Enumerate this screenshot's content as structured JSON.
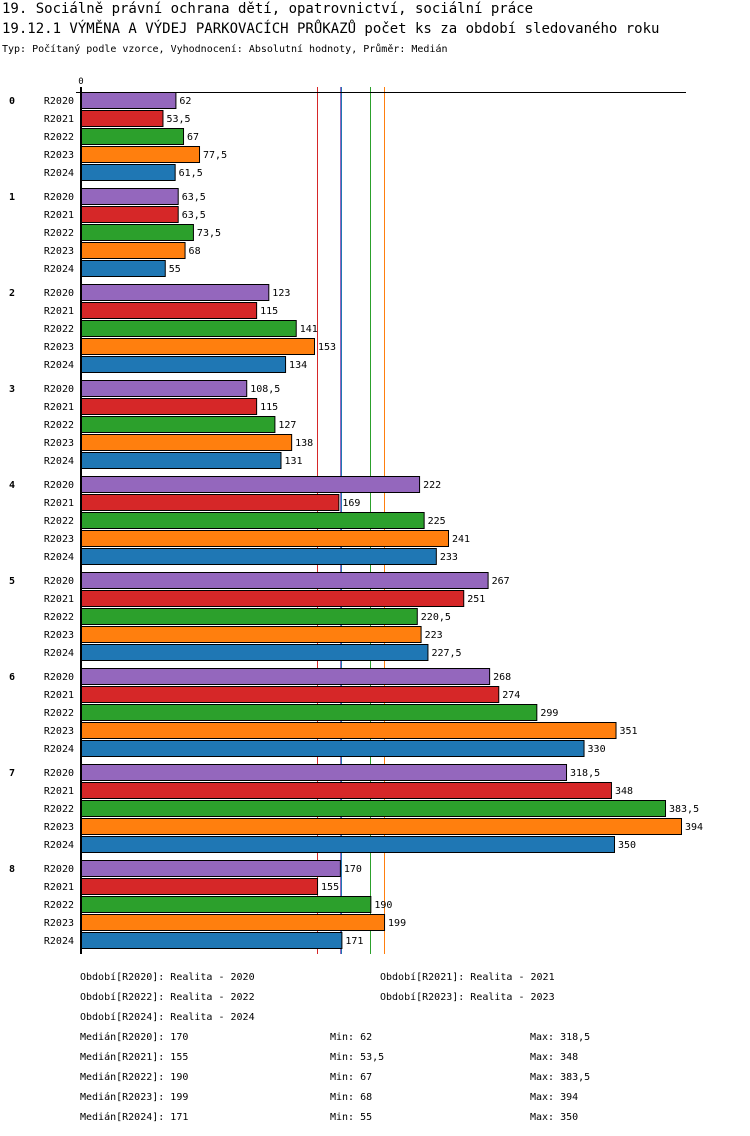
{
  "header": {
    "title": "19. Sociálně právní ochrana dětí, opatrovnictví, sociální práce",
    "subtitle": "19.12.1 VÝMĚNA A VÝDEJ PARKOVACÍCH PRŮKAZŮ počet ks za období sledovaného roku",
    "type_line": "Typ: Počítaný podle vzorce, Vyhodnocení: Absolutní hodnoty, Průměr: Medián"
  },
  "chart_data": {
    "type": "bar",
    "orientation": "horizontal",
    "title": "19.12.1 VÝMĚNA A VÝDEJ PARKOVACÍCH PRŮKAZŮ počet ks za období sledovaného roku",
    "xlabel": "",
    "ylabel": "",
    "x_tick_labels": [
      "0"
    ],
    "xlim": [
      0,
      394
    ],
    "categories": [
      "0",
      "1",
      "2",
      "3",
      "4",
      "5",
      "6",
      "7",
      "8"
    ],
    "series": [
      {
        "name": "R2020",
        "color": "#9467bd",
        "values": [
          62,
          63.5,
          123,
          108.5,
          222,
          267,
          268,
          318.5,
          170
        ],
        "labels": [
          "62",
          "63,5",
          "123",
          "108,5",
          "222",
          "267",
          "268",
          "318,5",
          "170"
        ],
        "median": 170
      },
      {
        "name": "R2021",
        "color": "#d62728",
        "values": [
          53.5,
          63.5,
          115,
          115,
          169,
          251,
          274,
          348,
          155
        ],
        "labels": [
          "53,5",
          "63,5",
          "115",
          "115",
          "169",
          "251",
          "274",
          "348",
          "155"
        ],
        "median": 155
      },
      {
        "name": "R2022",
        "color": "#2ca02c",
        "values": [
          67,
          73.5,
          141,
          127,
          225,
          220.5,
          299,
          383.5,
          190
        ],
        "labels": [
          "67",
          "73,5",
          "141",
          "127",
          "225",
          "220,5",
          "299",
          "383,5",
          "190"
        ],
        "median": 190
      },
      {
        "name": "R2023",
        "color": "#ff7f0e",
        "values": [
          77.5,
          68,
          153,
          138,
          241,
          223,
          351,
          394,
          199
        ],
        "labels": [
          "77,5",
          "68",
          "153",
          "138",
          "241",
          "223",
          "351",
          "394",
          "199"
        ],
        "median": 199
      },
      {
        "name": "R2024",
        "color": "#1f77b4",
        "values": [
          61.5,
          55,
          134,
          131,
          233,
          227.5,
          330,
          350,
          171
        ],
        "labels": [
          "61,5",
          "55",
          "134",
          "131",
          "233",
          "227,5",
          "330",
          "350",
          "171"
        ],
        "median": 171
      }
    ],
    "median_lines": true,
    "grid": false,
    "legend": "bottom"
  },
  "footer": {
    "periods": [
      "Období[R2020]: Realita - 2020",
      "Období[R2021]: Realita - 2021",
      "Období[R2022]: Realita - 2022",
      "Období[R2023]: Realita - 2023",
      "Období[R2024]: Realita - 2024"
    ],
    "stats": [
      {
        "median": "Medián[R2020]: 170",
        "min": "Min: 62",
        "max": "Max: 318,5"
      },
      {
        "median": "Medián[R2021]: 155",
        "min": "Min: 53,5",
        "max": "Max: 348"
      },
      {
        "median": "Medián[R2022]: 190",
        "min": "Min: 67",
        "max": "Max: 383,5"
      },
      {
        "median": "Medián[R2023]: 199",
        "min": "Min: 68",
        "max": "Max: 394"
      },
      {
        "median": "Medián[R2024]: 171",
        "min": "Min: 55",
        "max": "Max: 350"
      }
    ]
  }
}
